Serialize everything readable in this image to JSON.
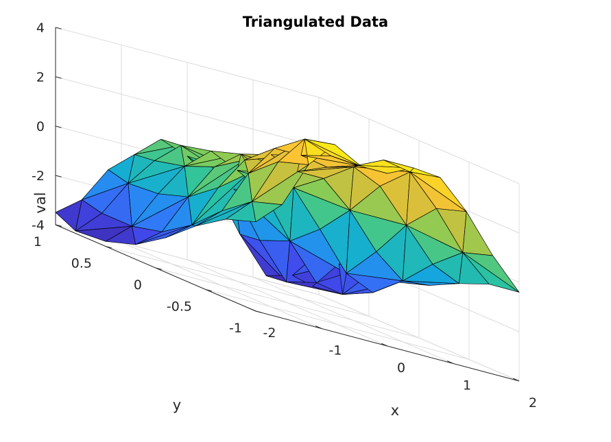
{
  "chart_data": {
    "type": "surface",
    "title": "Triangulated Data",
    "xlabel": "x",
    "ylabel": "y",
    "zlabel": "val",
    "xlim": [
      -2,
      2
    ],
    "ylim": [
      -1,
      1
    ],
    "zlim": [
      -4,
      4
    ],
    "xticks": [
      -2,
      -1,
      0,
      1,
      2
    ],
    "yticks": [
      -1,
      -0.5,
      0,
      0.5,
      1
    ],
    "zticks": [
      -4,
      -2,
      0,
      2,
      4
    ],
    "xtick_labels": [
      "-2",
      "-1",
      "0",
      "1",
      "2"
    ],
    "ytick_labels": [
      "-1",
      "-0.5",
      "0",
      "0.5",
      "1"
    ],
    "ztick_labels": [
      "-4",
      "-2",
      "0",
      "2",
      "4"
    ],
    "grid": true,
    "colormap": "parula",
    "colormap_stops": [
      "#3e26a8",
      "#4148ea",
      "#2e80f9",
      "#12aada",
      "#2bc39f",
      "#81cd59",
      "#d2bf3b",
      "#fcc433",
      "#f7f90d"
    ],
    "grid_x": [
      -2,
      -1.6,
      -1.2,
      -0.8,
      -0.4,
      0,
      0.4,
      0.8,
      1.2,
      1.6,
      2
    ],
    "grid_y": [
      -1,
      -0.7,
      -0.4,
      -0.1,
      0.2,
      0.5,
      0.8,
      1
    ],
    "values": [
      [
        -0.38,
        -0.8,
        -1.6,
        -2.6,
        -3.4,
        -3.8,
        -3.9,
        -3.5
      ],
      [
        0.6,
        0.2,
        -0.7,
        -1.8,
        -2.6,
        -2.9,
        -2.9,
        -2.7
      ],
      [
        2.5,
        2.1,
        1.1,
        0.0,
        -0.9,
        -1.3,
        -1.4,
        -1.2
      ],
      [
        3.6,
        3.3,
        2.4,
        1.4,
        0.6,
        0.1,
        -0.2,
        -0.3
      ],
      [
        3.0,
        2.9,
        2.4,
        1.9,
        1.4,
        1.0,
        0.7,
        0.6
      ],
      [
        3.0,
        2.8,
        2.2,
        1.5,
        0.9,
        0.5,
        0.3,
        0.2
      ],
      [
        3.5,
        3.3,
        2.5,
        1.5,
        0.6,
        -0.1,
        -0.5,
        -0.6
      ],
      [
        3.4,
        3.1,
        2.0,
        0.5,
        -0.8,
        -1.8,
        -2.3,
        -2.4
      ],
      [
        2.3,
        1.9,
        0.7,
        -0.9,
        -2.3,
        -3.2,
        -3.7,
        -3.8
      ],
      [
        0.8,
        0.4,
        -0.6,
        -1.8,
        -2.8,
        -3.4,
        -3.6,
        -3.5
      ],
      [
        -0.4,
        -0.6,
        -1.1,
        -1.7,
        -2.1,
        -2.3,
        -2.4,
        -2.3
      ]
    ]
  }
}
